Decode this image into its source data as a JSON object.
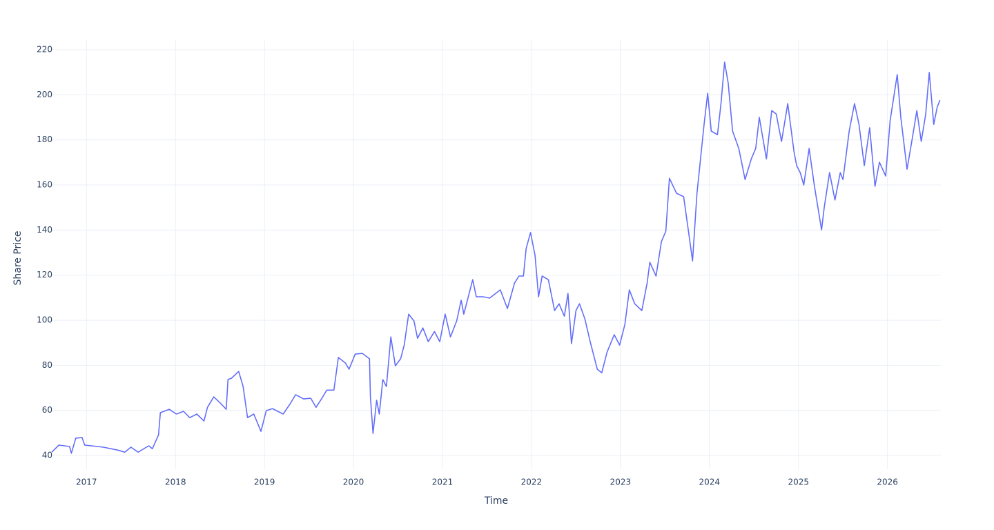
{
  "chart_data": {
    "type": "line",
    "x_label": "Time",
    "y_label": "Share Price",
    "xlim": [
      2016.61,
      2026.6
    ],
    "ylim": [
      33.9,
      224.3
    ],
    "xticks": [
      2017,
      2018,
      2019,
      2020,
      2021,
      2022,
      2023,
      2024,
      2025,
      2026
    ],
    "yticks": [
      40,
      60,
      80,
      100,
      120,
      140,
      160,
      180,
      200,
      220
    ],
    "grid": true,
    "series": [
      {
        "color": "#636efa",
        "x": [
          2016.61,
          2016.69,
          2016.81,
          2016.83,
          2016.88,
          2016.95,
          2016.98,
          2017.19,
          2017.35,
          2017.43,
          2017.5,
          2017.58,
          2017.7,
          2017.74,
          2017.81,
          2017.83,
          2017.93,
          2018.01,
          2018.09,
          2018.16,
          2018.24,
          2018.32,
          2018.36,
          2018.43,
          2018.51,
          2018.57,
          2018.59,
          2018.63,
          2018.71,
          2018.76,
          2018.81,
          2018.88,
          2018.96,
          2019.02,
          2019.09,
          2019.21,
          2019.29,
          2019.35,
          2019.44,
          2019.52,
          2019.58,
          2019.64,
          2019.7,
          2019.78,
          2019.83,
          2019.91,
          2019.95,
          2020.02,
          2020.1,
          2020.18,
          2020.19,
          2020.22,
          2020.26,
          2020.29,
          2020.33,
          2020.37,
          2020.42,
          2020.47,
          2020.53,
          2020.57,
          2020.62,
          2020.68,
          2020.72,
          2020.78,
          2020.84,
          2020.91,
          2020.97,
          2021.03,
          2021.09,
          2021.16,
          2021.21,
          2021.24,
          2021.34,
          2021.38,
          2021.46,
          2021.53,
          2021.65,
          2021.73,
          2021.81,
          2021.86,
          2021.91,
          2021.94,
          2021.99,
          2022.04,
          2022.08,
          2022.12,
          2022.19,
          2022.26,
          2022.31,
          2022.37,
          2022.41,
          2022.45,
          2022.5,
          2022.54,
          2022.6,
          2022.66,
          2022.74,
          2022.79,
          2022.85,
          2022.93,
          2022.99,
          2023.05,
          2023.1,
          2023.16,
          2023.24,
          2023.3,
          2023.33,
          2023.4,
          2023.46,
          2023.51,
          2023.55,
          2023.63,
          2023.71,
          2023.77,
          2023.81,
          2023.86,
          2023.94,
          2023.98,
          2024.02,
          2024.09,
          2024.13,
          2024.17,
          2024.21,
          2024.26,
          2024.33,
          2024.4,
          2024.47,
          2024.52,
          2024.56,
          2024.64,
          2024.7,
          2024.75,
          2024.81,
          2024.88,
          2024.95,
          2024.98,
          2025.02,
          2025.06,
          2025.12,
          2025.18,
          2025.26,
          2025.29,
          2025.35,
          2025.41,
          2025.47,
          2025.5,
          2025.57,
          2025.63,
          2025.68,
          2025.74,
          2025.8,
          2025.86,
          2025.91,
          2025.98,
          2026.03,
          2026.11,
          2026.15,
          2026.22,
          2026.28,
          2026.33,
          2026.38,
          2026.43,
          2026.47,
          2026.52,
          2026.56,
          2026.59
        ],
        "values": [
          41.5,
          44.6,
          44,
          41,
          47.7,
          48,
          44.6,
          43.7,
          42.4,
          41.5,
          43.7,
          41.5,
          44.3,
          43,
          49.2,
          59,
          60.5,
          58.4,
          59.6,
          56.8,
          58.4,
          55.3,
          61.4,
          66,
          63,
          60.5,
          73.7,
          74.3,
          77.3,
          70.6,
          56.8,
          58.4,
          50.7,
          59.9,
          60.8,
          58.4,
          63,
          67,
          65.1,
          65.4,
          61.4,
          65.1,
          69,
          69,
          83.5,
          81,
          78.3,
          85,
          85.3,
          82.9,
          66,
          49.8,
          64.5,
          58.4,
          73.7,
          70.6,
          92.6,
          79.8,
          82.9,
          89,
          102.7,
          99.7,
          92,
          96.6,
          90.5,
          95,
          90.5,
          102.7,
          92.6,
          99.7,
          108.9,
          102.7,
          118,
          110.4,
          110.4,
          109.8,
          113.5,
          105.2,
          116.5,
          119.6,
          119.6,
          131.8,
          138.9,
          128.8,
          110.4,
          119.6,
          118,
          104.3,
          107.3,
          101.8,
          111.9,
          89.6,
          104.3,
          107.3,
          100.6,
          90.5,
          78.3,
          76.7,
          85.9,
          93.6,
          89,
          98.2,
          113.5,
          107.3,
          104.3,
          116.5,
          125.7,
          119.6,
          134.9,
          139.5,
          163,
          156.3,
          154.8,
          137.9,
          126.3,
          156.3,
          186.9,
          200.7,
          183.9,
          182.3,
          196.1,
          214.5,
          205.3,
          183.9,
          176.2,
          162.4,
          171.6,
          176.2,
          190,
          171.6,
          193,
          191.5,
          179.3,
          196.1,
          174.7,
          168.6,
          165.5,
          160,
          176.2,
          159.4,
          140.1,
          150.2,
          165.5,
          153.3,
          165.5,
          162.4,
          183.9,
          196.1,
          186.9,
          168.6,
          185.4,
          159.4,
          170.1,
          164,
          188.5,
          209,
          190,
          167,
          180.8,
          193,
          179.3,
          191.5,
          209.9,
          186.9,
          194.6,
          197.6
        ]
      }
    ]
  }
}
